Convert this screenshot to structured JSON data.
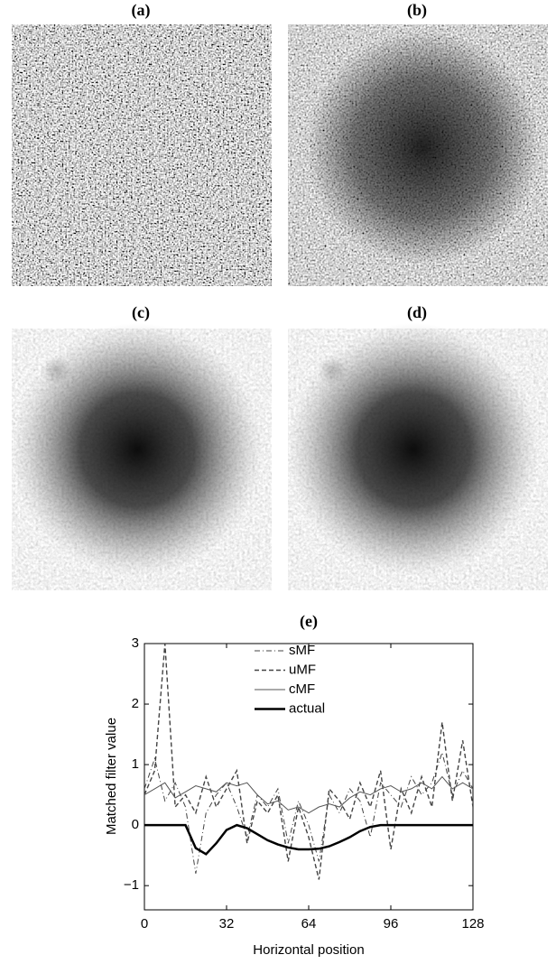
{
  "panel_labels": [
    "(a)",
    "(b)",
    "(c)",
    "(d)"
  ],
  "chart_data": {
    "type": "line",
    "title": "(e)",
    "x_label": "Horizontal position",
    "y_label": "Matched filter value",
    "x": [
      0,
      4,
      8,
      12,
      16,
      20,
      24,
      28,
      32,
      36,
      40,
      44,
      48,
      52,
      56,
      60,
      64,
      68,
      72,
      76,
      80,
      84,
      88,
      92,
      96,
      100,
      104,
      108,
      112,
      116,
      120,
      124,
      128
    ],
    "series": [
      {
        "name": "sMF",
        "color": "#444444",
        "dash": "dashdot",
        "width": 1,
        "values": [
          0.6,
          1.1,
          0.4,
          0.7,
          0.3,
          -0.8,
          0.2,
          0.5,
          0.7,
          0.3,
          -0.2,
          0.5,
          0.3,
          0.6,
          -0.3,
          0.4,
          0.0,
          -0.6,
          0.5,
          0.2,
          0.6,
          0.4,
          -0.2,
          0.7,
          0.5,
          0.3,
          0.8,
          0.5,
          0.7,
          1.2,
          0.5,
          0.9,
          0.6
        ]
      },
      {
        "name": "uMF",
        "color": "#444444",
        "dash": "dashed",
        "width": 1.4,
        "values": [
          0.5,
          0.9,
          3.0,
          0.3,
          0.5,
          0.2,
          0.8,
          0.3,
          0.6,
          0.9,
          -0.3,
          0.4,
          0.2,
          0.5,
          -0.6,
          0.3,
          -0.2,
          -0.9,
          0.6,
          0.4,
          0.1,
          0.7,
          0.3,
          0.9,
          -0.4,
          0.6,
          0.2,
          0.8,
          0.3,
          1.7,
          0.4,
          1.4,
          0.3
        ]
      },
      {
        "name": "cMF",
        "color": "#555555",
        "dash": "solid",
        "width": 1,
        "values": [
          0.5,
          0.6,
          0.7,
          0.45,
          0.55,
          0.65,
          0.6,
          0.55,
          0.7,
          0.65,
          0.7,
          0.5,
          0.35,
          0.4,
          0.25,
          0.3,
          0.2,
          0.3,
          0.35,
          0.3,
          0.45,
          0.55,
          0.5,
          0.6,
          0.65,
          0.55,
          0.6,
          0.7,
          0.6,
          0.8,
          0.6,
          0.7,
          0.6
        ]
      },
      {
        "name": "actual",
        "color": "#000000",
        "dash": "solid",
        "width": 2.5,
        "values": [
          0,
          0,
          0,
          0,
          0,
          -0.38,
          -0.48,
          -0.3,
          -0.08,
          0,
          -0.05,
          -0.15,
          -0.25,
          -0.32,
          -0.37,
          -0.4,
          -0.4,
          -0.39,
          -0.35,
          -0.28,
          -0.2,
          -0.1,
          -0.03,
          0,
          0,
          0,
          0,
          0,
          0,
          0,
          0,
          0,
          0
        ]
      }
    ],
    "xlim": [
      0,
      128
    ],
    "xticks": [
      0,
      32,
      64,
      96,
      128
    ],
    "ylim": [
      -1.4,
      3
    ],
    "yticks": [
      {
        "value": -1,
        "label": "−1"
      },
      0,
      1,
      2,
      3
    ],
    "legend": "upper center"
  }
}
